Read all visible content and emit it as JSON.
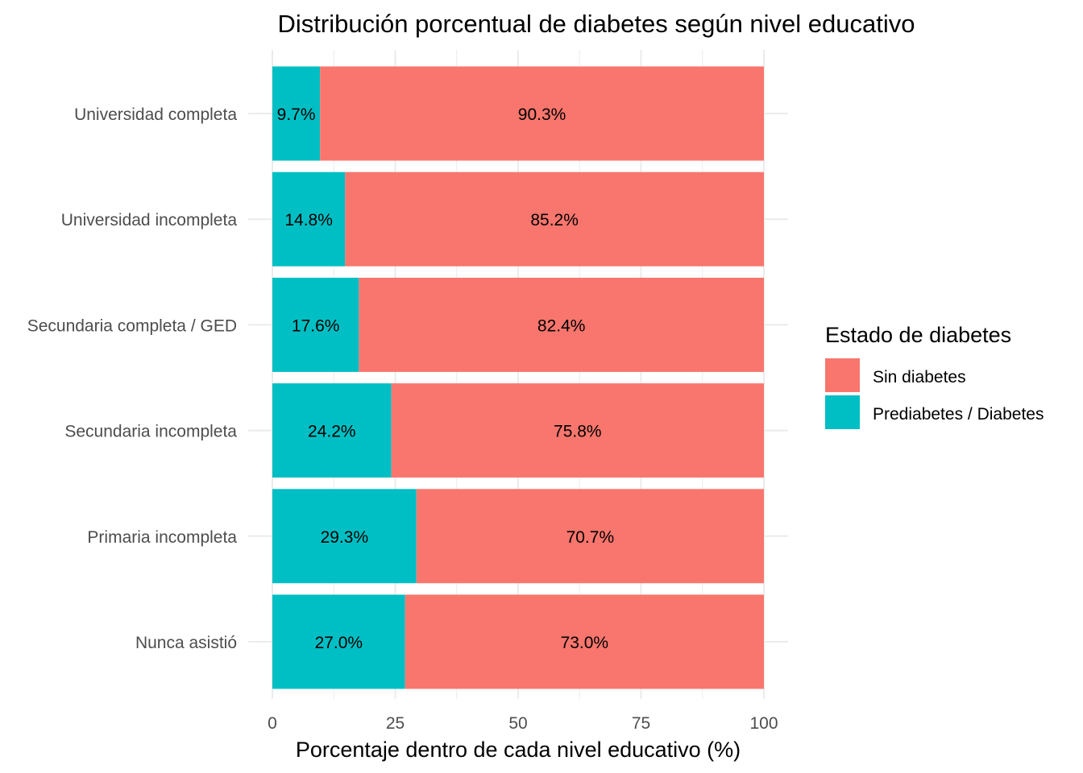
{
  "chart_data": {
    "type": "bar",
    "orientation": "horizontal",
    "stacked": true,
    "title": "Distribución porcentual de diabetes según nivel educativo",
    "xlabel": "Porcentaje dentro de cada nivel educativo (%)",
    "ylabel": "",
    "xlim": [
      0,
      100
    ],
    "x_ticks": [
      0,
      25,
      50,
      75,
      100
    ],
    "x_tick_labels": [
      "0",
      "25",
      "50",
      "75",
      "100"
    ],
    "grid": true,
    "categories": [
      "Universidad completa",
      "Universidad incompleta",
      "Secundaria completa / GED",
      "Secundaria incompleta",
      "Primaria incompleta",
      "Nunca asistió"
    ],
    "series": [
      {
        "name": "Prediabetes / Diabetes",
        "color": "#00BFC4",
        "values": [
          9.7,
          14.8,
          17.6,
          24.2,
          29.3,
          27.0
        ],
        "labels": [
          "9.7%",
          "14.8%",
          "17.6%",
          "24.2%",
          "29.3%",
          "27.0%"
        ]
      },
      {
        "name": "Sin diabetes",
        "color": "#F8766D",
        "values": [
          90.3,
          85.2,
          82.4,
          75.8,
          70.7,
          73.0
        ],
        "labels": [
          "90.3%",
          "85.2%",
          "82.4%",
          "75.8%",
          "70.7%",
          "73.0%"
        ]
      }
    ],
    "legend": {
      "title": "Estado de diabetes",
      "position": "right",
      "entries": [
        {
          "label": "Sin diabetes",
          "color": "#F8766D"
        },
        {
          "label": "Prediabetes / Diabetes",
          "color": "#00BFC4"
        }
      ]
    }
  }
}
